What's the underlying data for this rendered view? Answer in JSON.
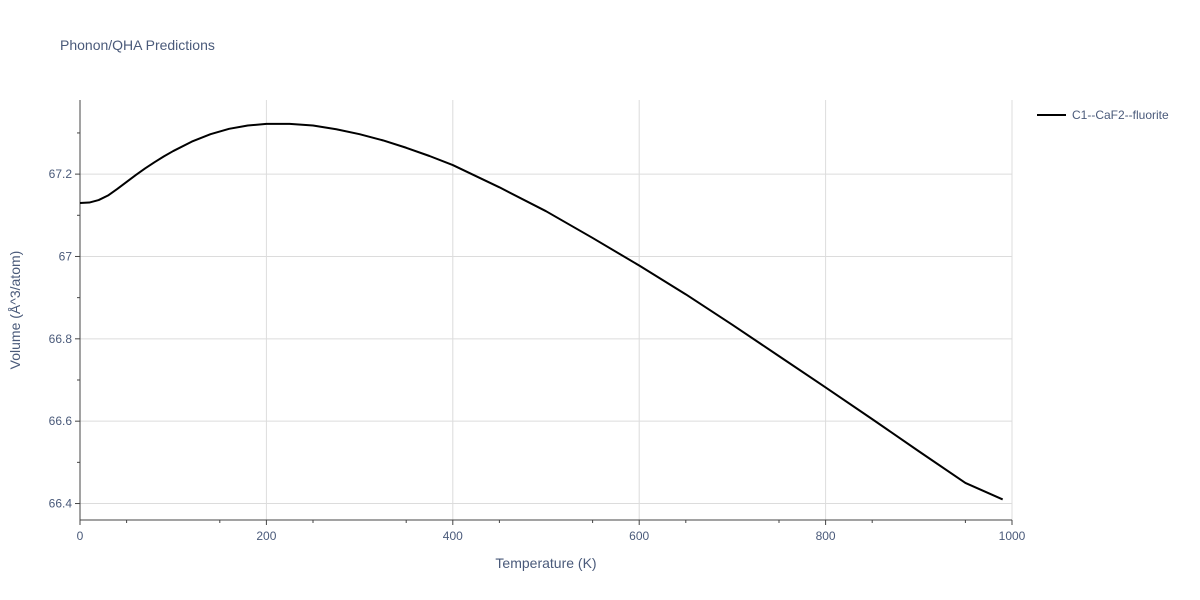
{
  "chart_data": {
    "type": "line",
    "title": "Phonon/QHA Predictions",
    "xlabel": "Temperature (K)",
    "ylabel": "Volume (Å^3/atom)",
    "xlim": [
      0,
      1000
    ],
    "ylim": [
      66.36,
      67.38
    ],
    "x_ticks": [
      0,
      200,
      400,
      600,
      800,
      1000
    ],
    "x_tick_labels": [
      "0",
      "200",
      "400",
      "600",
      "800",
      "1000"
    ],
    "y_ticks": [
      66.4,
      66.6,
      66.8,
      67.0,
      67.2
    ],
    "y_tick_labels": [
      "66.4",
      "66.6",
      "66.8",
      "67",
      "67.2"
    ],
    "grid": true,
    "legend_position": "top-right",
    "series": [
      {
        "name": "C1--CaF2--fluorite",
        "color": "#000000",
        "x": [
          0,
          10,
          20,
          30,
          40,
          50,
          60,
          70,
          80,
          90,
          100,
          120,
          140,
          160,
          180,
          200,
          225,
          250,
          275,
          300,
          325,
          350,
          375,
          400,
          450,
          500,
          550,
          600,
          650,
          700,
          750,
          800,
          850,
          900,
          950,
          990
        ],
        "y": [
          67.13,
          67.131,
          67.137,
          67.148,
          67.164,
          67.181,
          67.198,
          67.214,
          67.229,
          67.243,
          67.256,
          67.279,
          67.297,
          67.31,
          67.318,
          67.322,
          67.322,
          67.318,
          67.309,
          67.297,
          67.282,
          67.264,
          67.244,
          67.222,
          67.168,
          67.11,
          67.045,
          66.978,
          66.908,
          66.834,
          66.758,
          66.682,
          66.605,
          66.527,
          66.45,
          66.41
        ]
      }
    ]
  }
}
